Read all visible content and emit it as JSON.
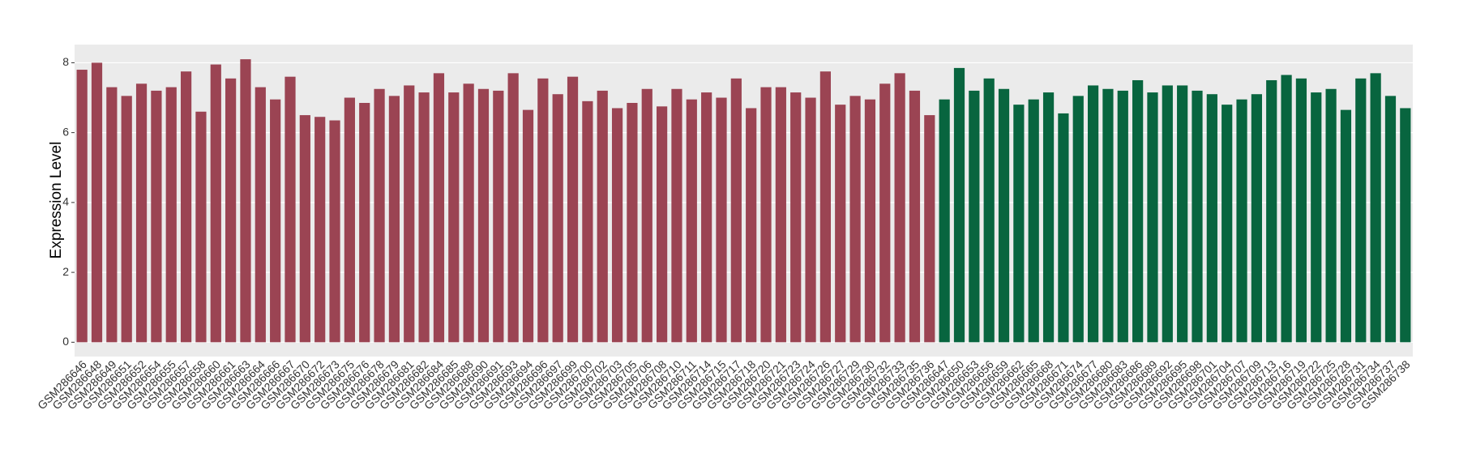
{
  "chart_data": {
    "type": "bar",
    "y_label": "Expression Level",
    "categories": [
      "GSM286646",
      "GSM286648",
      "GSM286649",
      "GSM286651",
      "GSM286652",
      "GSM286654",
      "GSM286655",
      "GSM286657",
      "GSM286658",
      "GSM286660",
      "GSM286661",
      "GSM286663",
      "GSM286664",
      "GSM286666",
      "GSM286667",
      "GSM286670",
      "GSM286672",
      "GSM286673",
      "GSM286675",
      "GSM286676",
      "GSM286678",
      "GSM286679",
      "GSM286681",
      "GSM286682",
      "GSM286684",
      "GSM286685",
      "GSM286688",
      "GSM286690",
      "GSM286691",
      "GSM286693",
      "GSM286694",
      "GSM286696",
      "GSM286697",
      "GSM286699",
      "GSM286700",
      "GSM286702",
      "GSM286703",
      "GSM286705",
      "GSM286706",
      "GSM286708",
      "GSM286710",
      "GSM286711",
      "GSM286714",
      "GSM286715",
      "GSM286717",
      "GSM286718",
      "GSM286720",
      "GSM286721",
      "GSM286723",
      "GSM286724",
      "GSM286726",
      "GSM286727",
      "GSM286729",
      "GSM286730",
      "GSM286732",
      "GSM286733",
      "GSM286735",
      "GSM286736",
      "GSM286647",
      "GSM286650",
      "GSM286653",
      "GSM286656",
      "GSM286659",
      "GSM286662",
      "GSM286665",
      "GSM286668",
      "GSM286671",
      "GSM286674",
      "GSM286677",
      "GSM286680",
      "GSM286683",
      "GSM286686",
      "GSM286689",
      "GSM286692",
      "GSM286695",
      "GSM286698",
      "GSM286701",
      "GSM286704",
      "GSM286707",
      "GSM286709",
      "GSM286713",
      "GSM286716",
      "GSM286719",
      "GSM286722",
      "GSM286725",
      "GSM286728",
      "GSM286731",
      "GSM286734",
      "GSM286737",
      "GSM286738"
    ],
    "values": [
      7.8,
      8.0,
      7.3,
      7.05,
      7.4,
      7.2,
      7.3,
      7.75,
      6.6,
      7.95,
      7.55,
      8.1,
      7.3,
      6.95,
      7.6,
      6.5,
      6.45,
      6.35,
      7.0,
      6.85,
      7.25,
      7.05,
      7.35,
      7.15,
      7.7,
      7.15,
      7.4,
      7.25,
      7.2,
      7.7,
      6.65,
      7.55,
      7.1,
      7.6,
      6.9,
      7.2,
      6.7,
      6.85,
      7.25,
      6.75,
      7.25,
      6.95,
      7.15,
      7.0,
      7.55,
      6.7,
      7.3,
      7.3,
      7.15,
      7.0,
      7.75,
      6.8,
      7.05,
      6.95,
      7.4,
      7.7,
      7.2,
      6.5,
      6.95,
      7.85,
      7.2,
      7.55,
      7.25,
      6.8,
      6.95,
      7.15,
      6.55,
      7.05,
      7.35,
      7.25,
      7.2,
      7.5,
      7.15,
      7.35,
      7.35,
      7.2,
      7.1,
      6.8,
      6.95,
      7.1,
      7.5,
      7.65,
      7.55,
      7.15,
      7.25,
      6.65,
      7.55,
      7.7,
      7.05,
      6.7
    ],
    "colors": [
      "#9b4453",
      "#9b4453",
      "#9b4453",
      "#9b4453",
      "#9b4453",
      "#9b4453",
      "#9b4453",
      "#9b4453",
      "#9b4453",
      "#9b4453",
      "#9b4453",
      "#9b4453",
      "#9b4453",
      "#9b4453",
      "#9b4453",
      "#9b4453",
      "#9b4453",
      "#9b4453",
      "#9b4453",
      "#9b4453",
      "#9b4453",
      "#9b4453",
      "#9b4453",
      "#9b4453",
      "#9b4453",
      "#9b4453",
      "#9b4453",
      "#9b4453",
      "#9b4453",
      "#9b4453",
      "#9b4453",
      "#9b4453",
      "#9b4453",
      "#9b4453",
      "#9b4453",
      "#9b4453",
      "#9b4453",
      "#9b4453",
      "#9b4453",
      "#9b4453",
      "#9b4453",
      "#9b4453",
      "#9b4453",
      "#9b4453",
      "#9b4453",
      "#9b4453",
      "#9b4453",
      "#9b4453",
      "#9b4453",
      "#9b4453",
      "#9b4453",
      "#9b4453",
      "#9b4453",
      "#9b4453",
      "#9b4453",
      "#9b4453",
      "#9b4453",
      "#9b4453",
      "#08653f",
      "#08653f",
      "#08653f",
      "#08653f",
      "#08653f",
      "#08653f",
      "#08653f",
      "#08653f",
      "#08653f",
      "#08653f",
      "#08653f",
      "#08653f",
      "#08653f",
      "#08653f",
      "#08653f",
      "#08653f",
      "#08653f",
      "#08653f",
      "#08653f",
      "#08653f",
      "#08653f",
      "#08653f",
      "#08653f",
      "#08653f",
      "#08653f",
      "#08653f",
      "#08653f",
      "#08653f",
      "#08653f",
      "#08653f",
      "#08653f",
      "#08653f"
    ],
    "ylim": [
      -0.41,
      8.52
    ],
    "yticks": [
      0,
      2,
      4,
      6,
      8
    ],
    "grid": true
  }
}
